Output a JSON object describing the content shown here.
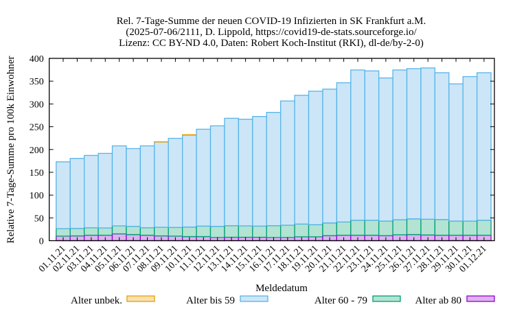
{
  "chart_data": {
    "type": "bar",
    "stacked": true,
    "title": [
      "Rel. 7-Tage-Summe der neuen COVID-19 Infizierten in SK Frankfurt a.M.",
      "(2025-07-06/2111, D. Lippold, https://covid19-de-stats.sourceforge.io/",
      "Lizenz: CC BY-ND 4.0, Daten: Robert Koch-Institut (RKI), dl-de/by-2-0)"
    ],
    "xlabel": "Meldedatum",
    "ylabel": "Relative 7-Tage-Summe pro 100k Einwohner",
    "ylim": [
      0,
      400
    ],
    "yticks": [
      "0",
      "50",
      "100",
      "150",
      "200",
      "250",
      "300",
      "350",
      "400"
    ],
    "legend_position": "bottom",
    "categories": [
      "01.11.21",
      "02.11.21",
      "03.11.21",
      "04.11.21",
      "05.11.21",
      "06.11.21",
      "07.11.21",
      "08.11.21",
      "09.11.21",
      "10.11.21",
      "11.11.21",
      "12.11.21",
      "13.11.21",
      "14.11.21",
      "15.11.21",
      "16.11.21",
      "17.11.21",
      "18.11.21",
      "19.11.21",
      "20.11.21",
      "21.11.21",
      "22.11.21",
      "23.11.21",
      "24.11.21",
      "25.11.21",
      "26.11.21",
      "27.11.21",
      "28.11.21",
      "29.11.21",
      "30.11.21",
      "01.12.21"
    ],
    "series": [
      {
        "name": "Alter ab 80",
        "fill": "#dcb3f0",
        "stroke": "#9400d3",
        "values": [
          10,
          10.5,
          12,
          12,
          15,
          13.5,
          12,
          10.5,
          10,
          9,
          9,
          7,
          7.5,
          7.5,
          7.5,
          7,
          7,
          8.5,
          8.5,
          11,
          12,
          12,
          12,
          11,
          13,
          13.5,
          12.5,
          12,
          12,
          12,
          12
        ]
      },
      {
        "name": "Alter 60 - 79",
        "fill": "#b3e3d3",
        "stroke": "#009e73",
        "values": [
          16.5,
          16.5,
          16.5,
          16,
          17.5,
          18,
          16.5,
          19,
          19,
          21,
          23,
          24.5,
          25.5,
          25,
          24.5,
          26,
          27,
          28,
          26.5,
          28,
          29,
          33,
          33,
          32,
          33,
          34.5,
          34.5,
          34.5,
          31,
          31,
          33
        ]
      },
      {
        "name": "Alter bis 59",
        "fill": "#cce6f8",
        "stroke": "#56b4e9",
        "values": [
          146.5,
          153.5,
          158.5,
          163.5,
          175.5,
          170.5,
          179.5,
          187,
          195.5,
          201.5,
          212.5,
          220.5,
          235.5,
          234,
          240.5,
          248.5,
          272.5,
          282.5,
          293,
          293.5,
          305.5,
          329.5,
          327.5,
          314,
          328.5,
          329.5,
          332,
          322,
          301,
          317,
          323.5
        ]
      },
      {
        "name": "Alter unbek.",
        "fill": "#f9e0b0",
        "stroke": "#e69f00",
        "values": [
          0,
          0,
          0,
          0,
          0,
          0,
          0,
          0.5,
          0,
          1,
          0,
          0,
          0,
          0,
          0,
          0,
          0,
          0,
          0,
          0,
          0,
          0,
          0,
          0,
          0,
          0,
          0,
          0,
          0,
          0,
          0
        ]
      }
    ],
    "legend_order": [
      "Alter unbek.",
      "Alter bis 59",
      "Alter 60 - 79",
      "Alter ab 80"
    ]
  }
}
